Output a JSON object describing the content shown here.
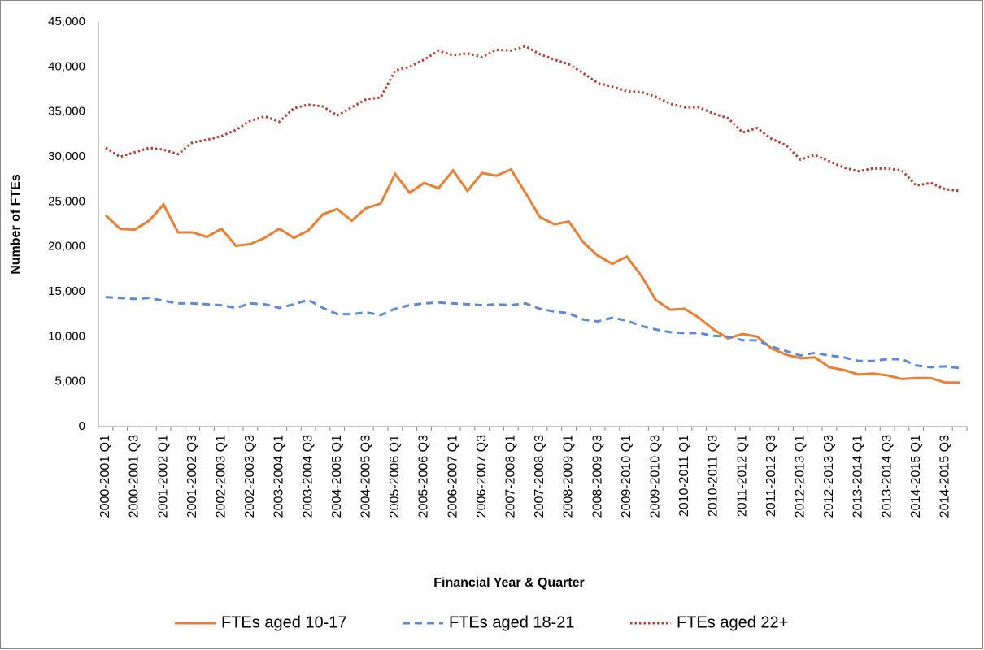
{
  "chart_data": {
    "type": "line",
    "x_label": "Financial Year & Quarter",
    "y_label": "Number of FTEs",
    "categories": [
      "2000-2001 Q1",
      null,
      "2000-2001 Q3",
      null,
      "2001-2002 Q1",
      null,
      "2001-2002 Q3",
      null,
      "2002-2003 Q1",
      null,
      "2002-2003 Q3",
      null,
      "2003-2004 Q1",
      null,
      "2003-2004 Q3",
      null,
      "2004-2005 Q1",
      null,
      "2004-2005 Q3",
      null,
      "2005-2006 Q1",
      null,
      "2005-2006 Q3",
      null,
      "2006-2007 Q1",
      null,
      "2006-2007 Q3",
      null,
      "2007-2008 Q1",
      null,
      "2007-2008 Q3",
      null,
      "2008-2009 Q1",
      null,
      "2008-2009 Q3",
      null,
      "2009-2010 Q1",
      null,
      "2009-2010 Q3",
      null,
      "2010-2011 Q1",
      null,
      "2010-2011 Q3",
      null,
      "2011-2012 Q1",
      null,
      "2011-2012 Q3",
      null,
      "2012-2013 Q1",
      null,
      "2012-2013 Q3",
      null,
      "2013-2014 Q1",
      null,
      "2013-2014 Q3",
      null,
      "2014-2015 Q1",
      null,
      "2014-2015 Q3",
      null
    ],
    "series": [
      {
        "name": "FTEs aged 10-17",
        "color": "#ed7d31",
        "style": "solid",
        "values": [
          23500,
          22000,
          21900,
          22900,
          24700,
          21600,
          21600,
          21100,
          22000,
          20100,
          20300,
          21000,
          22000,
          21000,
          21800,
          23600,
          24200,
          22900,
          24300,
          24800,
          28100,
          26000,
          27100,
          26500,
          28500,
          26200,
          28200,
          27900,
          28600,
          26000,
          23300,
          22500,
          22800,
          20500,
          19000,
          18100,
          18900,
          16800,
          14100,
          13000,
          13100,
          12100,
          10800,
          9800,
          10300,
          10000,
          8700,
          8000,
          7600,
          7700,
          6600,
          6300,
          5800,
          5900,
          5700,
          5300,
          5400,
          5400,
          4900,
          4900
        ]
      },
      {
        "name": "FTEs aged 18-21",
        "color": "#5b8bd6",
        "style": "dashed",
        "values": [
          14400,
          14300,
          14200,
          14300,
          14000,
          13700,
          13700,
          13600,
          13500,
          13200,
          13700,
          13600,
          13200,
          13600,
          14100,
          13200,
          12500,
          12500,
          12700,
          12400,
          13100,
          13500,
          13700,
          13800,
          13700,
          13600,
          13500,
          13600,
          13500,
          13700,
          13100,
          12800,
          12600,
          11900,
          11700,
          12100,
          11800,
          11200,
          10800,
          10500,
          10400,
          10400,
          10100,
          10000,
          9600,
          9600,
          8900,
          8400,
          7900,
          8200,
          7900,
          7700,
          7300,
          7300,
          7500,
          7500,
          6800,
          6600,
          6700,
          6500
        ]
      },
      {
        "name": "FTEs aged 22+",
        "color": "#c0392b",
        "style": "dotted",
        "values": [
          31000,
          30000,
          30500,
          31000,
          30800,
          30300,
          31600,
          31900,
          32300,
          33000,
          34000,
          34500,
          33900,
          35400,
          35800,
          35600,
          34600,
          35500,
          36400,
          36600,
          39600,
          40000,
          40800,
          41800,
          41300,
          41500,
          41100,
          41900,
          41800,
          42300,
          41400,
          40800,
          40300,
          39300,
          38200,
          37800,
          37300,
          37200,
          36700,
          35900,
          35500,
          35500,
          34800,
          34300,
          32700,
          33200,
          32000,
          31300,
          29700,
          30200,
          29500,
          28800,
          28400,
          28700,
          28700,
          28500,
          26800,
          27100,
          26400,
          26200
        ]
      }
    ],
    "ylim": [
      0,
      45000
    ],
    "yticks": [
      0,
      {
        "value": 5000,
        "label": "5,000"
      },
      {
        "value": 10000,
        "label": "10,000"
      },
      {
        "value": 15000,
        "label": "15,000"
      },
      {
        "value": 20000,
        "label": "20,000"
      },
      {
        "value": 25000,
        "label": "25,000"
      },
      {
        "value": 30000,
        "label": "30,000"
      },
      {
        "value": 35000,
        "label": "35,000"
      },
      {
        "value": 40000,
        "label": "40,000"
      },
      {
        "value": 45000,
        "label": "45,000"
      }
    ],
    "grid": false,
    "legend": "bottom"
  }
}
